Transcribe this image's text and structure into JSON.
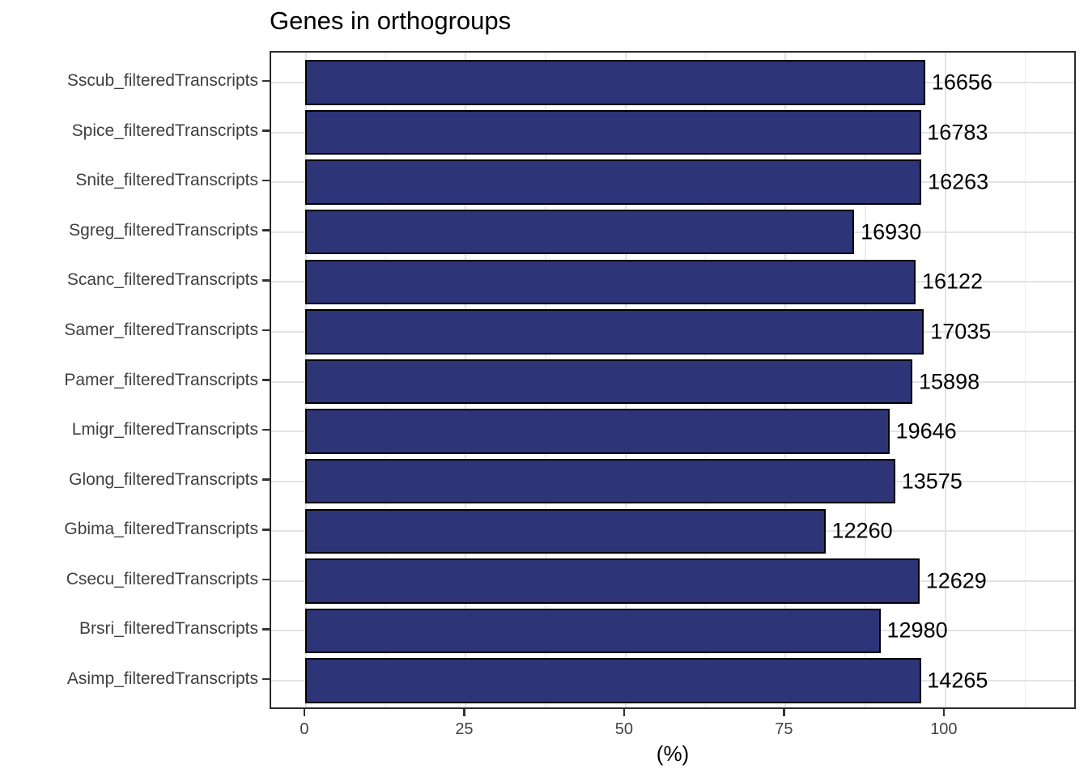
{
  "chart_data": {
    "type": "bar",
    "orientation": "horizontal",
    "title": "Genes in orthogroups",
    "xlabel": "(%)",
    "ylabel": "",
    "legend": "none",
    "grid": "major and minor vertical gridlines, major horizontal gridlines",
    "xlim": [
      -5.44,
      120.65
    ],
    "x_tick_values": [
      0,
      25,
      50,
      75,
      100
    ],
    "x_ticks": [
      "0",
      "25",
      "50",
      "75",
      "100"
    ],
    "x_minor_tick_values": [
      12.5,
      37.5,
      62.5,
      87.5,
      112.5
    ],
    "categories": [
      "Sscub_filteredTranscripts",
      "Spice_filteredTranscripts",
      "Snite_filteredTranscripts",
      "Sgreg_filteredTranscripts",
      "Scanc_filteredTranscripts",
      "Samer_filteredTranscripts",
      "Pamer_filteredTranscripts",
      "Lmigr_filteredTranscripts",
      "Glong_filteredTranscripts",
      "Gbima_filteredTranscripts",
      "Csecu_filteredTranscripts",
      "Brsri_filteredTranscripts",
      "Asimp_filteredTranscripts"
    ],
    "values_percent": [
      96.7,
      96.0,
      96.1,
      85.6,
      95.2,
      96.5,
      94.7,
      91.1,
      92.0,
      81.1,
      95.8,
      89.7,
      96.0
    ],
    "bar_labels": [
      "16656",
      "16783",
      "16263",
      "16930",
      "16122",
      "17035",
      "15898",
      "19646",
      "13575",
      "12260",
      "12629",
      "12980",
      "14265"
    ],
    "colors": {
      "bar_fill": "#2d3478",
      "bar_stroke": "#000000",
      "grid_major": "#e3e3e3",
      "grid_minor": "#ededed",
      "panel_border": "#2b2b2b",
      "axis_text": "#3f3f3f",
      "title_text": "#000000",
      "value_text": "#000000",
      "background": "#ffffff"
    }
  }
}
